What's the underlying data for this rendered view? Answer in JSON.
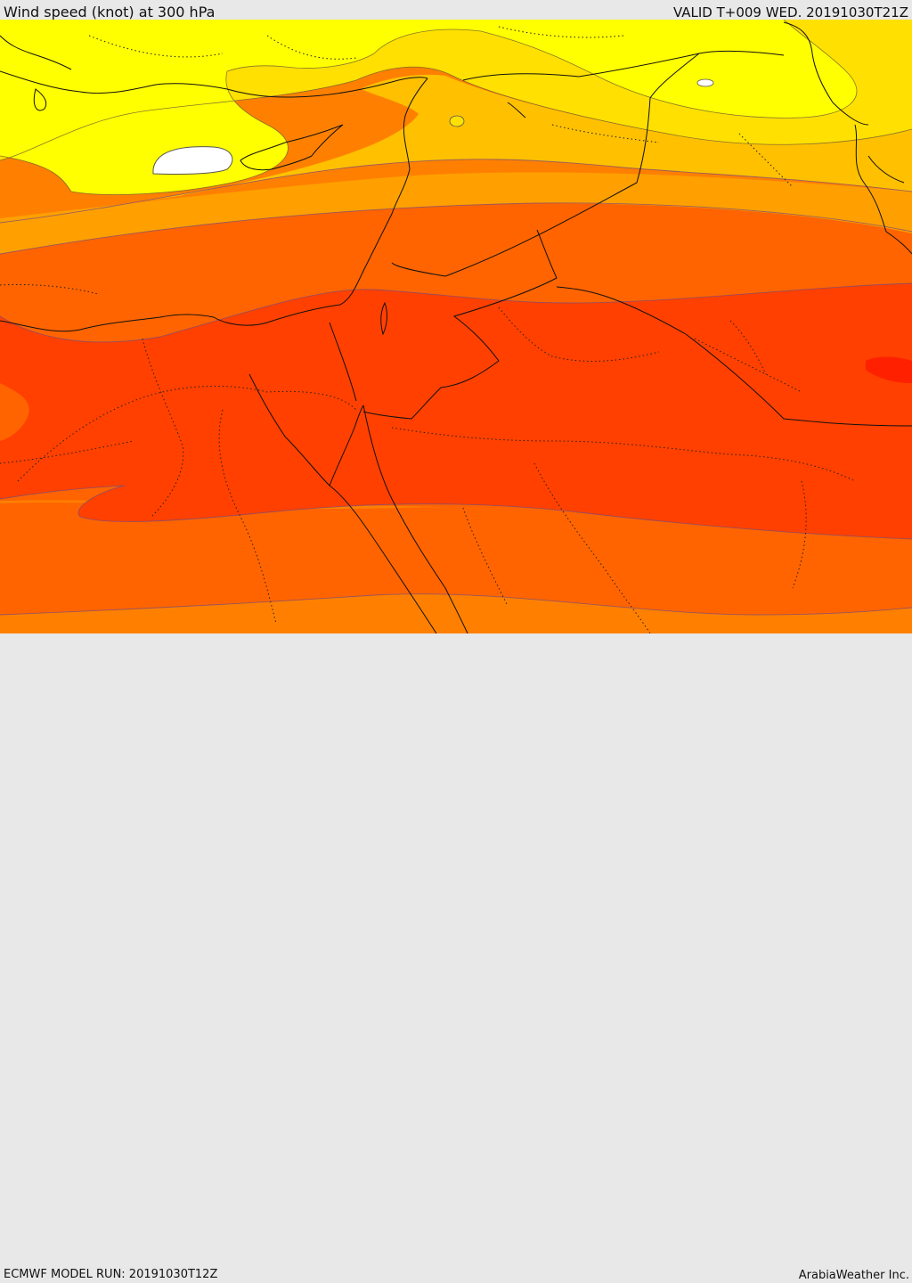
{
  "header": {
    "title": "Wind speed (knot) at 300 hPa",
    "valid_time": "VALID T+009 WED. 20191030T21Z"
  },
  "footer": {
    "model_run": "ECMWF MODEL RUN: 20191030T12Z",
    "credit": "ArabiaWeather Inc."
  },
  "map": {
    "colors": {
      "band_white": "#ffffff",
      "band_1": "#ffff00",
      "band_2": "#ffe000",
      "band_3": "#ffc000",
      "band_4": "#ffa000",
      "band_5": "#ff8000",
      "band_6": "#ff6400",
      "band_7": "#ff4000",
      "band_8": "#ff2000"
    }
  }
}
